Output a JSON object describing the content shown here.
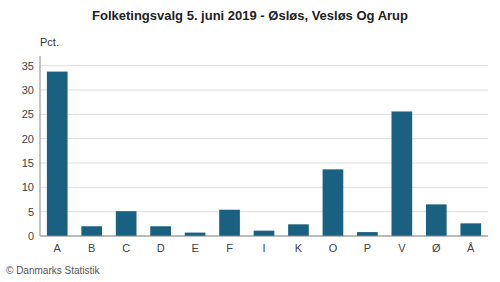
{
  "chart_data": {
    "type": "bar",
    "title": "Folketingsvalg 5. juni 2019 - Øsløs, Vesløs Og Arup",
    "categories": [
      "A",
      "B",
      "C",
      "D",
      "E",
      "F",
      "I",
      "K",
      "O",
      "P",
      "V",
      "Ø",
      "Å"
    ],
    "values": [
      33.8,
      2.0,
      5.1,
      2.0,
      0.7,
      5.4,
      1.1,
      2.4,
      13.7,
      0.8,
      25.6,
      6.5,
      2.6
    ],
    "color": "#1a6080",
    "ylabel": "Pct.",
    "ylim": [
      0,
      37
    ],
    "yticks": [
      0,
      5,
      10,
      15,
      20,
      25,
      30,
      35
    ],
    "grid": true,
    "annotations": [
      "© Danmarks Statistik"
    ]
  }
}
